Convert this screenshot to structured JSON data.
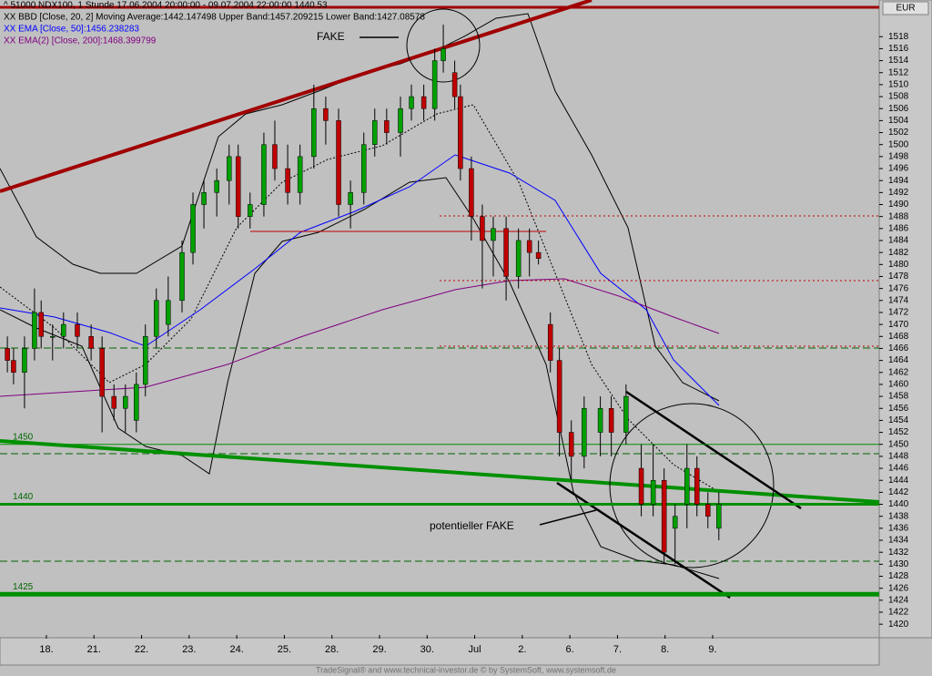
{
  "chart_data": {
    "type": "candlestick",
    "header": [
      "^ 51000 NDX100, 1 Stunde   17.06.2004 20:00:00 - 09.07.2004 22:00:00   1440.53",
      "XX BBD [Close, 20, 2] Moving Average:1442.147498 Upper Band:1457.209215 Lower Band:1427.08578",
      "XX EMA [Close, 50]:1456.238283",
      "XX EMA(2) [Close, 200]:1468.399799"
    ],
    "header_colors": [
      "#000000",
      "#000000",
      "#0000ff",
      "#800080"
    ],
    "currency": "EUR",
    "annotations": [
      "FAKE",
      "potentieller FAKE"
    ],
    "footer": "TradeSignal® and www.technical-investor.de © by SystemSoft, www.systemsoft.de",
    "up_color": "#00a000",
    "down_color": "#c00000",
    "levels": [
      1450,
      1440,
      1425
    ],
    "xlim": [
      -0.975,
      17.5
    ],
    "xticks": [
      {
        "value": 0,
        "label": "18."
      },
      {
        "value": 1,
        "label": "21."
      },
      {
        "value": 2,
        "label": "22."
      },
      {
        "value": 3,
        "label": "23."
      },
      {
        "value": 4,
        "label": "24."
      },
      {
        "value": 5,
        "label": "25."
      },
      {
        "value": 6,
        "label": "28."
      },
      {
        "value": 7,
        "label": "29."
      },
      {
        "value": 8,
        "label": "30."
      },
      {
        "value": 9,
        "label": "Jul"
      },
      {
        "value": 10,
        "label": "2."
      },
      {
        "value": 11,
        "label": "6."
      },
      {
        "value": 12,
        "label": "7."
      },
      {
        "value": 13,
        "label": "8."
      },
      {
        "value": 14,
        "label": "9."
      }
    ],
    "ylim": [
      1418.2,
      1522.9
    ],
    "yticks": [
      1420,
      1422,
      1424,
      1426,
      1428,
      1430,
      1432,
      1434,
      1436,
      1438,
      1440,
      1442,
      1444,
      1446,
      1448,
      1450,
      1452,
      1454,
      1456,
      1458,
      1460,
      1462,
      1464,
      1466,
      1468,
      1470,
      1472,
      1474,
      1476,
      1478,
      1480,
      1482,
      1484,
      1486,
      1488,
      1490,
      1492,
      1494,
      1496,
      1498,
      1500,
      1502,
      1504,
      1506,
      1508,
      1510,
      1512,
      1514,
      1516,
      1518
    ],
    "x": [
      -0.82,
      -0.69,
      -0.46,
      -0.25,
      -0.11,
      0.13,
      0.36,
      0.65,
      0.94,
      1.17,
      1.42,
      1.66,
      1.89,
      2.08,
      2.31,
      2.56,
      2.85,
      3.08,
      3.31,
      3.58,
      3.84,
      4.03,
      4.28,
      4.57,
      4.8,
      5.07,
      5.33,
      5.62,
      5.87,
      6.14,
      6.39,
      6.67,
      6.9,
      7.15,
      7.44,
      7.67,
      7.93,
      8.16,
      8.34,
      8.58,
      8.7,
      8.93,
      9.16,
      9.39,
      9.66,
      9.92,
      10.15,
      10.34,
      10.59,
      10.78,
      11.03,
      11.3,
      11.64,
      11.87,
      12.18,
      12.5,
      12.75,
      12.98,
      13.21,
      13.46,
      13.67,
      13.9,
      14.13
    ],
    "open": [
      1466,
      1464,
      1462,
      1466,
      1472,
      1468,
      1468,
      1470,
      1468,
      1466,
      1458,
      1456,
      1454,
      1460,
      1468,
      1470,
      1474,
      1482,
      1490,
      1492,
      1494,
      1498,
      1488,
      1490,
      1500,
      1496,
      1492,
      1498,
      1506,
      1504,
      1490,
      1492,
      1500,
      1504,
      1502,
      1506,
      1508,
      1506,
      1514,
      1512,
      1508,
      1496,
      1488,
      1484,
      1486,
      1478,
      1484,
      1482,
      1470,
      1464,
      1452,
      1448,
      1452,
      1456,
      1452,
      1446,
      1440,
      1444,
      1436,
      1440,
      1446,
      1440,
      1436
    ],
    "high": [
      1468,
      1466,
      1468,
      1476,
      1474,
      1470,
      1472,
      1472,
      1470,
      1468,
      1460,
      1460,
      1462,
      1470,
      1476,
      1478,
      1484,
      1492,
      1494,
      1496,
      1500,
      1500,
      1492,
      1502,
      1504,
      1500,
      1500,
      1510,
      1508,
      1506,
      1494,
      1502,
      1506,
      1506,
      1508,
      1510,
      1510,
      1516,
      1520,
      1514,
      1510,
      1498,
      1490,
      1488,
      1488,
      1486,
      1486,
      1484,
      1472,
      1466,
      1454,
      1458,
      1458,
      1458,
      1460,
      1450,
      1450,
      1446,
      1440,
      1450,
      1448,
      1442,
      1442
    ],
    "low": [
      1462,
      1460,
      1456,
      1464,
      1466,
      1464,
      1466,
      1466,
      1464,
      1452,
      1454,
      1452,
      1452,
      1458,
      1466,
      1468,
      1472,
      1480,
      1486,
      1488,
      1490,
      1486,
      1486,
      1488,
      1494,
      1490,
      1490,
      1496,
      1500,
      1488,
      1486,
      1490,
      1498,
      1500,
      1498,
      1504,
      1504,
      1504,
      1512,
      1506,
      1494,
      1484,
      1476,
      1478,
      1474,
      1476,
      1478,
      1480,
      1462,
      1448,
      1444,
      1446,
      1448,
      1448,
      1450,
      1438,
      1438,
      1430,
      1430,
      1436,
      1438,
      1436,
      1434
    ],
    "close": [
      1464,
      1462,
      1466,
      1472,
      1468,
      1468,
      1470,
      1468,
      1466,
      1458,
      1456,
      1458,
      1460,
      1468,
      1474,
      1474,
      1482,
      1490,
      1492,
      1494,
      1498,
      1488,
      1490,
      1500,
      1496,
      1492,
      1498,
      1506,
      1504,
      1490,
      1492,
      1500,
      1504,
      1502,
      1506,
      1508,
      1506,
      1514,
      1516,
      1508,
      1496,
      1488,
      1484,
      1486,
      1478,
      1484,
      1482,
      1481,
      1464,
      1452,
      1448,
      1456,
      1456,
      1452,
      1458,
      1440,
      1444,
      1432,
      1438,
      1446,
      1440,
      1438,
      1440
    ]
  }
}
